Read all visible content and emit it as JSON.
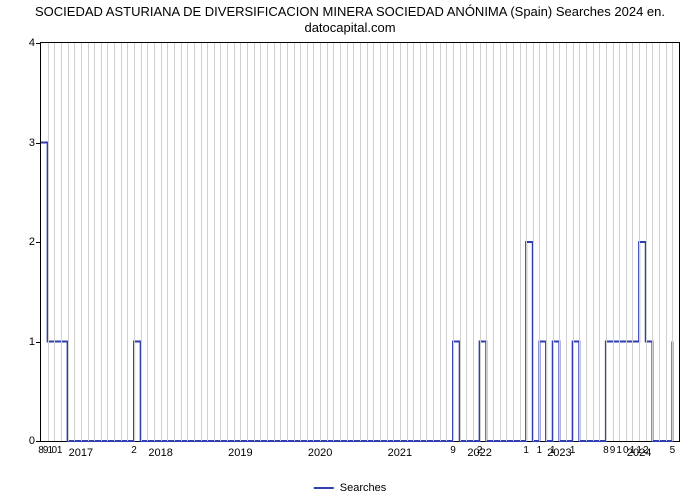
{
  "chart": {
    "type": "line",
    "title_line1": "SOCIEDAD ASTURIANA DE DIVERSIFICACION MINERA SOCIEDAD ANÓNIMA (Spain) Searches 2024 en.",
    "title_line2": "datocapital.com",
    "title_fontsize": 13,
    "background_color": "#ffffff",
    "grid_color": "#d0d0d0",
    "line_color": "#2f3fb2",
    "line_width": 2,
    "xlim": [
      0,
      96
    ],
    "ylim": [
      0,
      4
    ],
    "ytick_step": 1,
    "yticks": [
      0,
      1,
      2,
      3,
      4
    ],
    "n_months": 96,
    "year_labels": [
      {
        "x": 6,
        "text": "2017"
      },
      {
        "x": 18,
        "text": "2018"
      },
      {
        "x": 30,
        "text": "2019"
      },
      {
        "x": 42,
        "text": "2020"
      },
      {
        "x": 54,
        "text": "2021"
      },
      {
        "x": 66,
        "text": "2022"
      },
      {
        "x": 78,
        "text": "2023"
      },
      {
        "x": 90,
        "text": "2024"
      }
    ],
    "value_labels": [
      {
        "x": 0.0,
        "text": "8"
      },
      {
        "x": 0.7,
        "text": "9"
      },
      {
        "x": 1.4,
        "text": "1"
      },
      {
        "x": 2.0,
        "text": "0"
      },
      {
        "x": 2.8,
        "text": "1"
      },
      {
        "x": 14,
        "text": "2"
      },
      {
        "x": 62,
        "text": "9"
      },
      {
        "x": 66,
        "text": "2"
      },
      {
        "x": 73,
        "text": "1"
      },
      {
        "x": 75,
        "text": "1"
      },
      {
        "x": 77,
        "text": "1"
      },
      {
        "x": 80,
        "text": "1"
      },
      {
        "x": 85,
        "text": "8"
      },
      {
        "x": 86,
        "text": "9"
      },
      {
        "x": 87,
        "text": "1"
      },
      {
        "x": 88,
        "text": "0"
      },
      {
        "x": 89,
        "text": "1"
      },
      {
        "x": 90,
        "text": "1"
      },
      {
        "x": 91,
        "text": "2"
      },
      {
        "x": 95,
        "text": "5"
      }
    ],
    "series": [
      {
        "x": 0,
        "y": 3
      },
      {
        "x": 1,
        "y": 1
      },
      {
        "x": 2,
        "y": 1
      },
      {
        "x": 3,
        "y": 1
      },
      {
        "x": 4,
        "y": 0
      },
      {
        "x": 13,
        "y": 0
      },
      {
        "x": 14,
        "y": 1
      },
      {
        "x": 15,
        "y": 0
      },
      {
        "x": 61,
        "y": 0
      },
      {
        "x": 62,
        "y": 1
      },
      {
        "x": 63,
        "y": 0
      },
      {
        "x": 65,
        "y": 0
      },
      {
        "x": 66,
        "y": 1
      },
      {
        "x": 67,
        "y": 0
      },
      {
        "x": 72,
        "y": 0
      },
      {
        "x": 73,
        "y": 2
      },
      {
        "x": 74,
        "y": 0
      },
      {
        "x": 75,
        "y": 1
      },
      {
        "x": 76,
        "y": 0
      },
      {
        "x": 77,
        "y": 1
      },
      {
        "x": 78,
        "y": 0
      },
      {
        "x": 79,
        "y": 0
      },
      {
        "x": 80,
        "y": 1
      },
      {
        "x": 81,
        "y": 0
      },
      {
        "x": 84,
        "y": 0
      },
      {
        "x": 85,
        "y": 1
      },
      {
        "x": 86,
        "y": 1
      },
      {
        "x": 87,
        "y": 1
      },
      {
        "x": 88,
        "y": 1
      },
      {
        "x": 89,
        "y": 1
      },
      {
        "x": 90,
        "y": 2
      },
      {
        "x": 91,
        "y": 1
      },
      {
        "x": 92,
        "y": 0
      },
      {
        "x": 94,
        "y": 0
      },
      {
        "x": 95,
        "y": 1
      }
    ],
    "legend_label": "Searches"
  }
}
